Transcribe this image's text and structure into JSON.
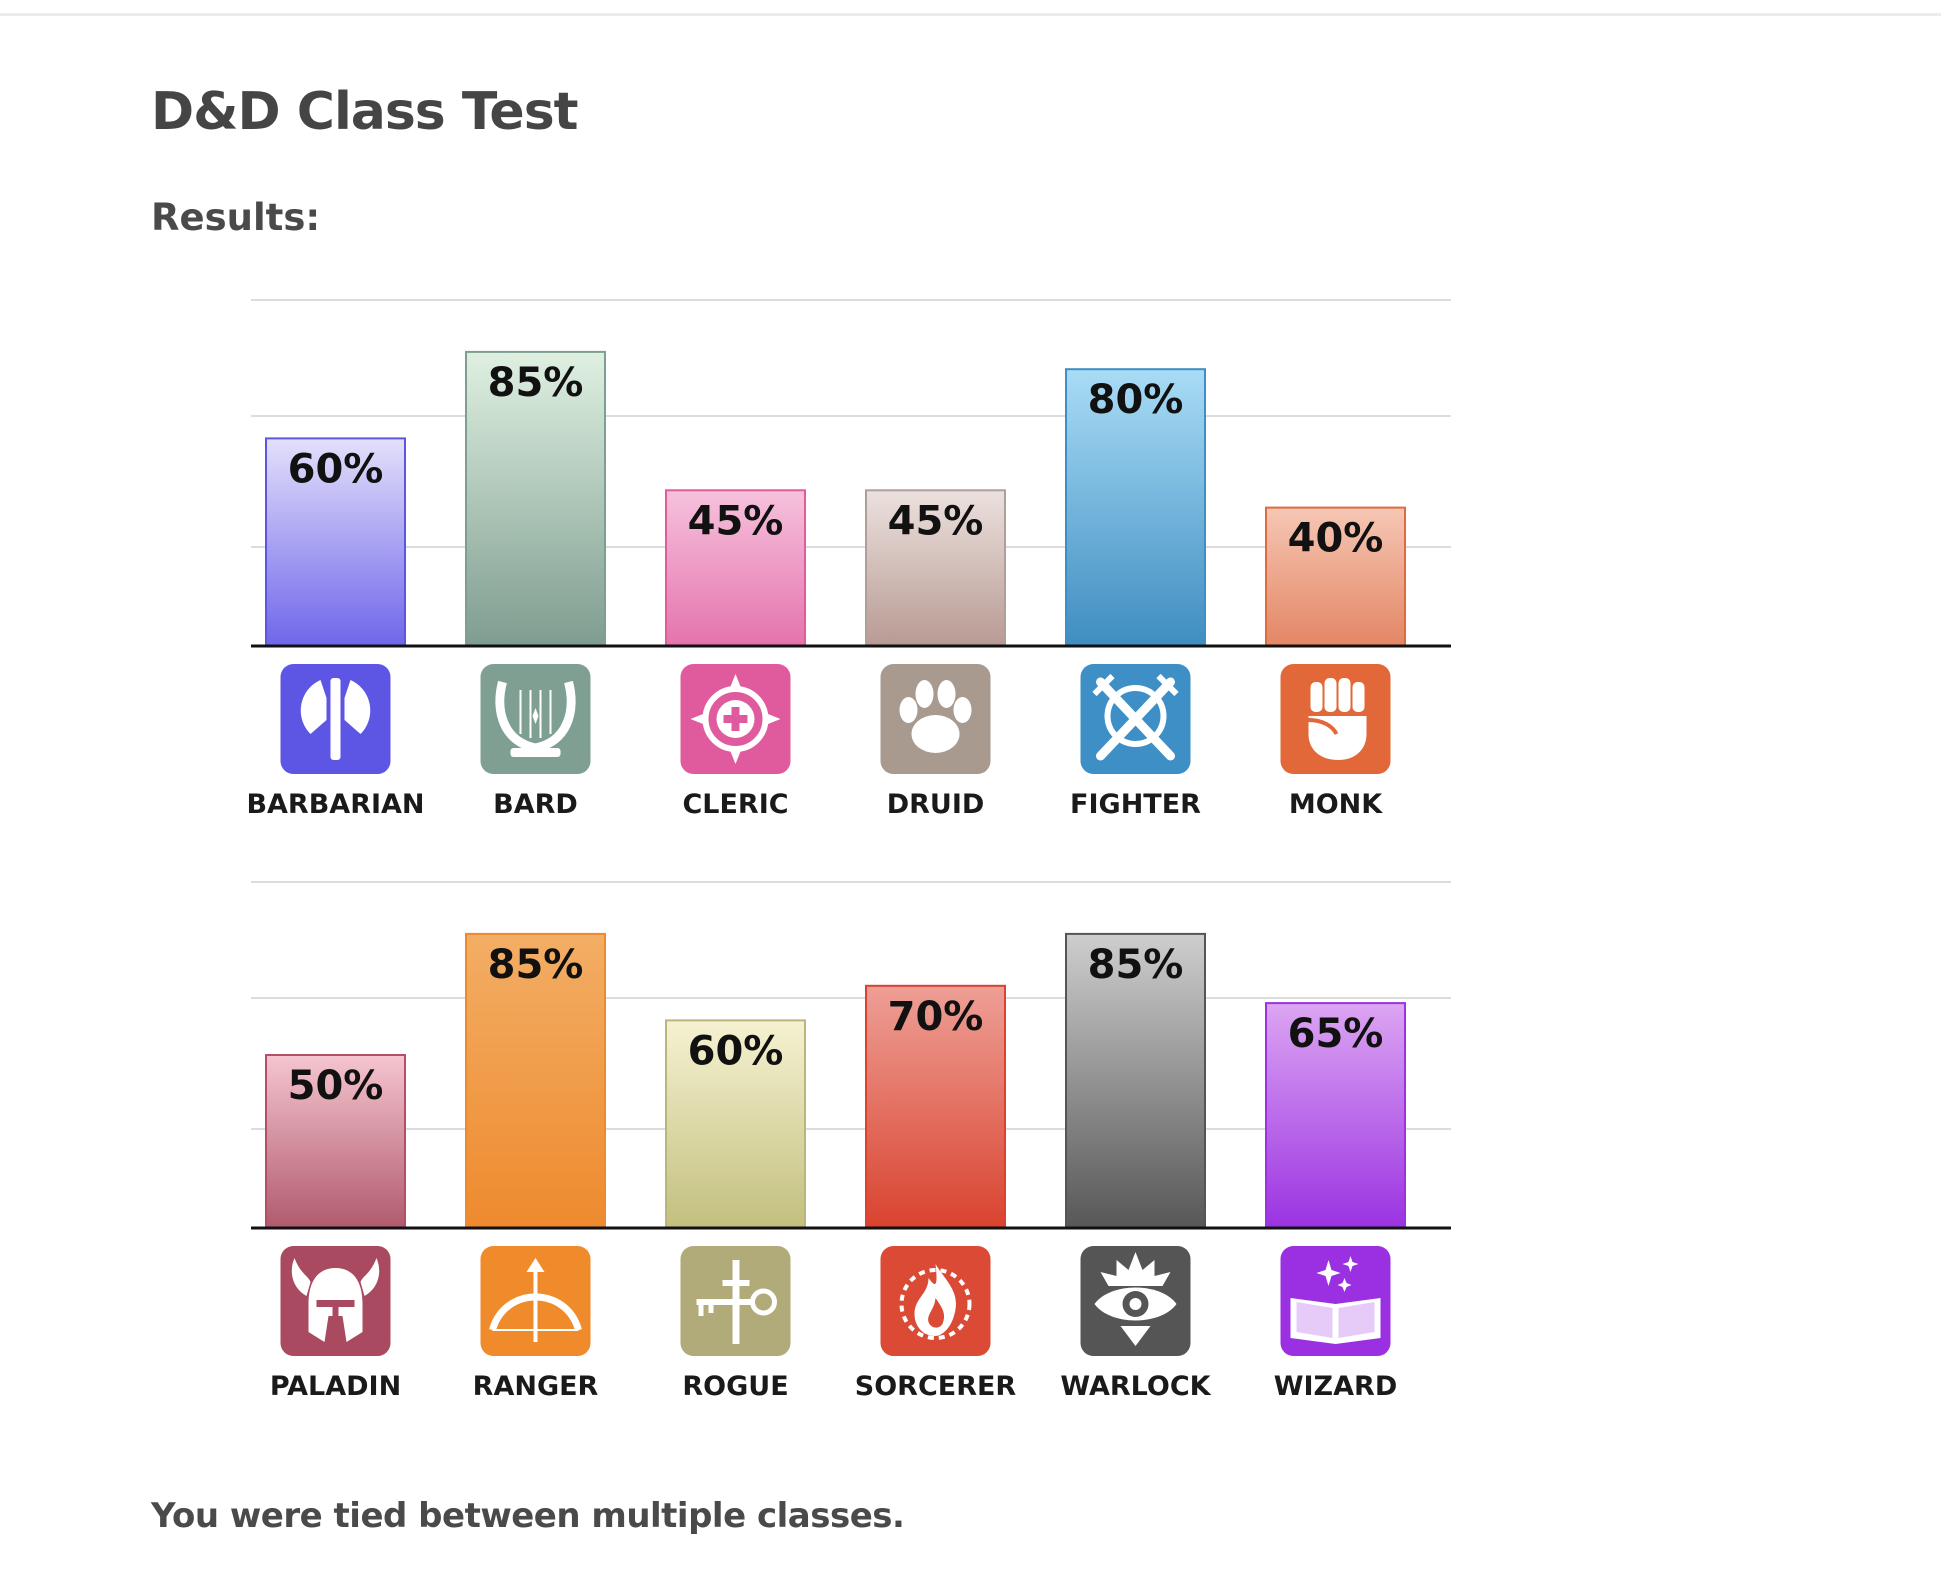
{
  "page": {
    "title": "D&D Class Test",
    "results_label": "Results:",
    "footer": "You were tied between multiple classes."
  },
  "chart_data": [
    {
      "type": "bar",
      "ylim": [
        0,
        100
      ],
      "grid": true,
      "categories": [
        "BARBARIAN",
        "BARD",
        "CLERIC",
        "DRUID",
        "FIGHTER",
        "MONK"
      ],
      "values": [
        60,
        85,
        45,
        45,
        80,
        40
      ],
      "value_labels": [
        "60%",
        "85%",
        "45%",
        "45%",
        "80%",
        "40%"
      ],
      "icons": [
        "axe-icon",
        "lyre-icon",
        "holy-symbol-icon",
        "paw-icon",
        "crossed-swords-icon",
        "fist-icon"
      ],
      "colors": [
        {
          "top": "#e3e0fb",
          "bottom": "#6f66ea",
          "border": "#5e55e0",
          "icon": "#5d55e4"
        },
        {
          "top": "#dff0e1",
          "bottom": "#7e9d90",
          "border": "#7d9f92",
          "icon": "#7f9f93"
        },
        {
          "top": "#f6c2dc",
          "bottom": "#e573ad",
          "border": "#df5c9d",
          "icon": "#e05b9d"
        },
        {
          "top": "#ece1de",
          "bottom": "#b89a93",
          "border": "#b09e97",
          "icon": "#a89a8e"
        },
        {
          "top": "#a9dcf6",
          "bottom": "#3f8dc1",
          "border": "#3e8fc6",
          "icon": "#3e8fc6"
        },
        {
          "top": "#f6c7b5",
          "bottom": "#e38665",
          "border": "#e06b3f",
          "icon": "#e2683a"
        }
      ]
    },
    {
      "type": "bar",
      "ylim": [
        0,
        100
      ],
      "grid": true,
      "categories": [
        "PALADIN",
        "RANGER",
        "ROGUE",
        "SORCERER",
        "WARLOCK",
        "WIZARD"
      ],
      "values": [
        50,
        85,
        60,
        70,
        85,
        65
      ],
      "value_labels": [
        "50%",
        "85%",
        "60%",
        "70%",
        "85%",
        "65%"
      ],
      "icons": [
        "winged-helmet-icon",
        "bow-icon",
        "dagger-key-icon",
        "fire-icon",
        "eye-icon",
        "spellbook-icon"
      ],
      "colors": [
        {
          "top": "#f5c5cf",
          "bottom": "#b15a6e",
          "border": "#b34f67",
          "icon": "#a94a61"
        },
        {
          "top": "#f3ae65",
          "bottom": "#ee8a2e",
          "border": "#ee8a2e",
          "icon": "#f08b2c"
        },
        {
          "top": "#f6f2d2",
          "bottom": "#c2bf7e",
          "border": "#b8b67d",
          "icon": "#b1aa79"
        },
        {
          "top": "#ee9f96",
          "bottom": "#d9432f",
          "border": "#d9432f",
          "icon": "#da4a34"
        },
        {
          "top": "#cecece",
          "bottom": "#575757",
          "border": "#555555",
          "icon": "#555555"
        },
        {
          "top": "#dca5f2",
          "bottom": "#9b33e2",
          "border": "#9b33e2",
          "icon": "#9b30e2"
        }
      ]
    }
  ]
}
